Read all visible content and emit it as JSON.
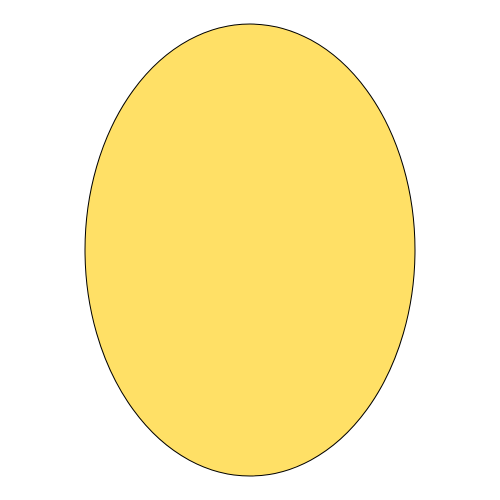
{
  "shape": {
    "kind": "ellipse",
    "fill_color": "#FFE066",
    "stroke_color": "#000000"
  },
  "background_color": "#FFFFFF"
}
